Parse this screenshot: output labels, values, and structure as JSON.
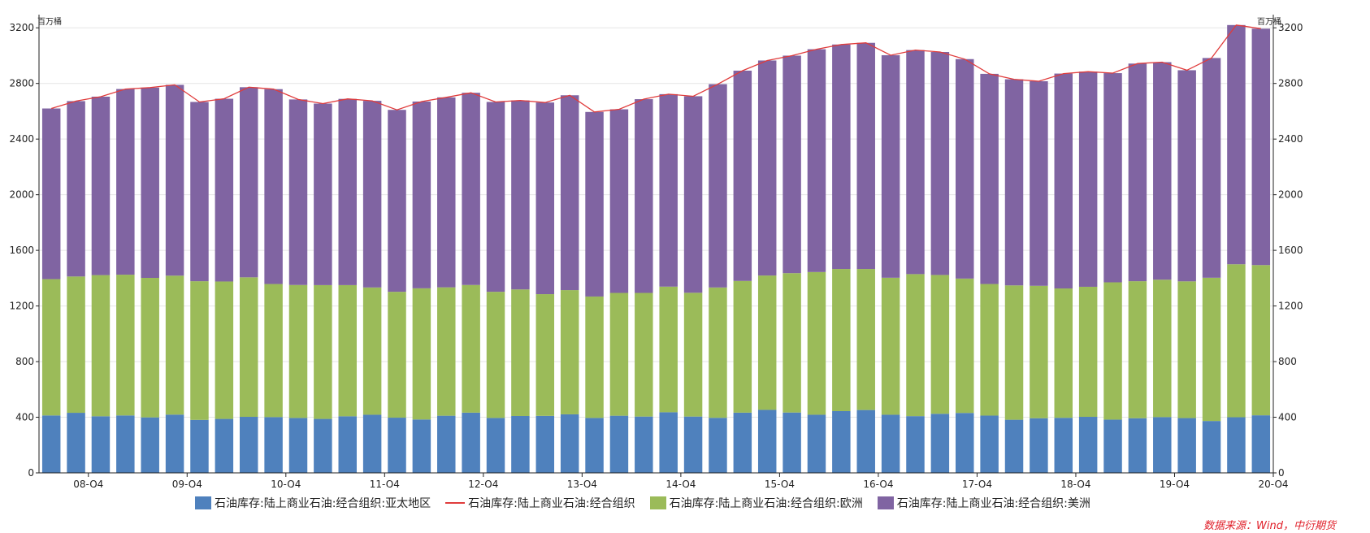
{
  "chart_data": {
    "type": "bar",
    "stacked": true,
    "left_unit": "百万桶",
    "right_unit": "百万桶",
    "ylim": [
      0,
      3400
    ],
    "yticks": [
      0,
      400,
      800,
      1200,
      1600,
      2000,
      2400,
      2800,
      3200
    ],
    "x_tick_labels": [
      "08-Q4",
      "09-Q4",
      "10-Q4",
      "11-Q4",
      "12-Q4",
      "13-Q4",
      "14-Q4",
      "15-Q4",
      "16-Q4",
      "17-Q4",
      "18-Q4",
      "19-Q4",
      "20-Q4"
    ],
    "x_tick_after_index": [
      1,
      5,
      9,
      13,
      17,
      21,
      25,
      29,
      33,
      37,
      41,
      45,
      49
    ],
    "grid": true,
    "series": [
      {
        "name": "石油库存:陆上商业石油:经合组织:亚太地区",
        "color": "#4f81bd",
        "kind": "bar",
        "values": [
          413,
          432,
          407,
          413,
          399,
          419,
          381,
          388,
          403,
          401,
          395,
          388,
          407,
          418,
          397,
          384,
          411,
          433,
          395,
          409,
          410,
          421,
          395,
          411,
          405,
          436,
          405,
          396,
          433,
          453,
          434,
          418,
          444,
          452,
          418,
          408,
          425,
          431,
          412,
          382,
          393,
          396,
          403,
          383,
          393,
          401,
          394,
          373,
          400,
          414
        ]
      },
      {
        "name": "石油库存:陆上商业石油:经合组织:欧洲",
        "color": "#9bbb59",
        "kind": "bar",
        "values": [
          980,
          980,
          1015,
          1012,
          1003,
          999,
          997,
          988,
          1003,
          957,
          956,
          962,
          943,
          915,
          905,
          943,
          923,
          918,
          907,
          910,
          875,
          893,
          873,
          883,
          889,
          903,
          890,
          937,
          947,
          966,
          1002,
          1026,
          1022,
          1014,
          985,
          1021,
          998,
          966,
          946,
          966,
          952,
          930,
          935,
          987,
          985,
          988,
          983,
          1030,
          1100,
          1080
        ]
      },
      {
        "name": "石油库存:陆上商业石油:经合组织:美洲",
        "color": "#8064a2",
        "kind": "bar",
        "values": [
          1227,
          1261,
          1283,
          1335,
          1368,
          1372,
          1289,
          1314,
          1367,
          1401,
          1334,
          1305,
          1339,
          1342,
          1308,
          1343,
          1366,
          1382,
          1365,
          1359,
          1378,
          1401,
          1327,
          1320,
          1393,
          1384,
          1413,
          1462,
          1512,
          1546,
          1564,
          1602,
          1614,
          1626,
          1600,
          1611,
          1603,
          1578,
          1511,
          1482,
          1471,
          1545,
          1547,
          1504,
          1565,
          1564,
          1518,
          1580,
          1720,
          1700
        ]
      },
      {
        "name": "石油库存:陆上商业石油:经合组织",
        "color": "#e03c3c",
        "kind": "line",
        "sum_of_bars": true
      }
    ],
    "source_note": "数据来源：Wind，中衍期货"
  }
}
